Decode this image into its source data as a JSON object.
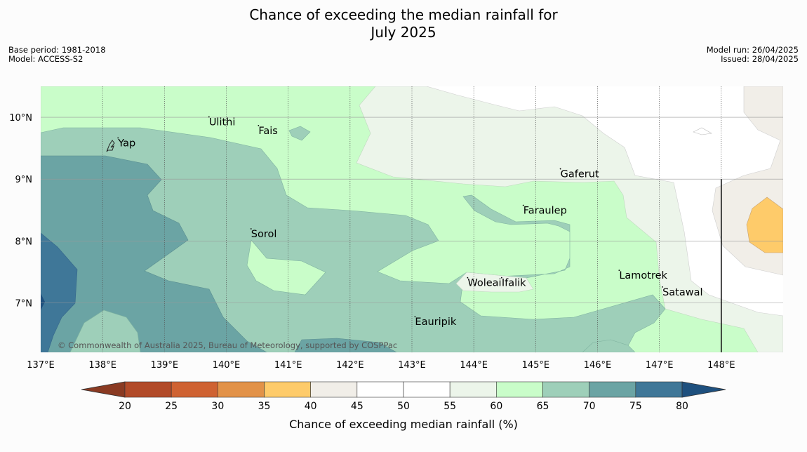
{
  "title": {
    "line1": "Chance of exceeding the median rainfall for",
    "line2": "July 2025"
  },
  "metadata": {
    "base_period": "Base period: 1981-2018",
    "model": "Model: ACCESS-S2",
    "model_run": "Model run: 26/04/2025",
    "issued": "Issued: 28/04/2025"
  },
  "map": {
    "lon_range": [
      137,
      149
    ],
    "lat_range": [
      6.2,
      10.5
    ],
    "lon_ticks": [
      {
        "value": 137,
        "label": "137°E"
      },
      {
        "value": 138,
        "label": "138°E"
      },
      {
        "value": 139,
        "label": "139°E"
      },
      {
        "value": 140,
        "label": "140°E"
      },
      {
        "value": 141,
        "label": "141°E"
      },
      {
        "value": 142,
        "label": "142°E"
      },
      {
        "value": 143,
        "label": "143°E"
      },
      {
        "value": 144,
        "label": "144°E"
      },
      {
        "value": 145,
        "label": "145°E"
      },
      {
        "value": 146,
        "label": "146°E"
      },
      {
        "value": 147,
        "label": "147°E"
      },
      {
        "value": 148,
        "label": "148°E"
      }
    ],
    "lat_ticks": [
      {
        "value": 10,
        "label": "10°N"
      },
      {
        "value": 9,
        "label": "9°N"
      },
      {
        "value": 8,
        "label": "8°N"
      },
      {
        "value": 7,
        "label": "7°N"
      }
    ],
    "places": [
      {
        "name": "Yap",
        "lon": 138.25,
        "lat": 9.53
      },
      {
        "name": "Ulithi",
        "lon": 139.72,
        "lat": 9.87
      },
      {
        "name": "Fais",
        "lon": 140.52,
        "lat": 9.73
      },
      {
        "name": "Gaferut",
        "lon": 145.4,
        "lat": 9.03
      },
      {
        "name": "Faraulep",
        "lon": 144.8,
        "lat": 8.44
      },
      {
        "name": "Sorol",
        "lon": 140.4,
        "lat": 8.06
      },
      {
        "name": "Woleai",
        "lon": 143.9,
        "lat": 7.27
      },
      {
        "name": "Ifalik",
        "lon": 144.45,
        "lat": 7.27
      },
      {
        "name": "Lamotrek",
        "lon": 146.35,
        "lat": 7.39
      },
      {
        "name": "Satawal",
        "lon": 147.05,
        "lat": 7.12
      },
      {
        "name": "Eauripik",
        "lon": 143.05,
        "lat": 6.64
      }
    ],
    "copyright": "© Commonwealth of Australia 2025, Bureau of Meteorology, supported by COSPPac"
  },
  "legend": {
    "title": "Chance of exceeding median rainfall (%)",
    "ticks": [
      "20",
      "25",
      "30",
      "35",
      "40",
      "45",
      "50",
      "55",
      "60",
      "65",
      "70",
      "75",
      "80"
    ],
    "colors": {
      "below_20": "#8a3a22",
      "20_25": "#b24a28",
      "25_30": "#cf6232",
      "30_35": "#e29248",
      "35_40": "#fecb6a",
      "40_45": "#f1eee8",
      "45_50": "#ffffff",
      "50_55": "#ffffff",
      "55_60": "#ecf5ea",
      "60_65": "#c9fdc9",
      "65_70": "#9ecfb9",
      "70_75": "#6ba4a4",
      "75_80": "#3f7798",
      "above_80": "#1e507e"
    }
  }
}
